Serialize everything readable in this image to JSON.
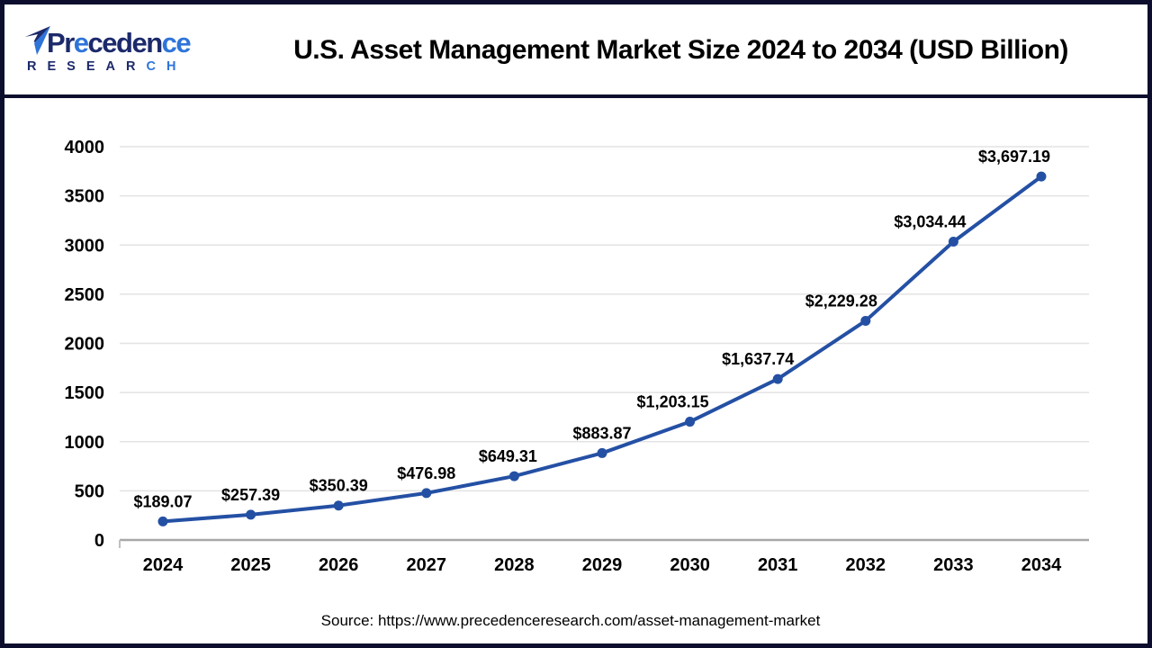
{
  "header": {
    "logo": {
      "brand": "Precedence",
      "sub": "RESEARCH"
    },
    "title": "U.S. Asset Management Market Size 2024 to 2034 (USD Billion)"
  },
  "chart_data": {
    "type": "line",
    "title": "U.S. Asset Management Market Size 2024 to 2034 (USD Billion)",
    "x": [
      2024,
      2025,
      2026,
      2027,
      2028,
      2029,
      2030,
      2031,
      2032,
      2033,
      2034
    ],
    "values": [
      189.07,
      257.39,
      350.39,
      476.98,
      649.31,
      883.87,
      1203.15,
      1637.74,
      2229.28,
      3034.44,
      3697.19
    ],
    "point_labels": [
      "$189.07",
      "$257.39",
      "$350.39",
      "$476.98",
      "$649.31",
      "$883.87",
      "$1,203.15",
      "$1,637.74",
      "$2,229.28",
      "$3,034.44",
      "$3,697.19"
    ],
    "unit": "USD Billion",
    "xlabel": "",
    "ylabel": "",
    "ylim": [
      0,
      4000
    ],
    "yticks": [
      0,
      500,
      1000,
      1500,
      2000,
      2500,
      3000,
      3500,
      4000
    ],
    "grid": true,
    "legend": "none"
  },
  "footer": {
    "source": "Source: https://www.precedenceresearch.com/asset-management-market"
  },
  "colors": {
    "line": "#2450a4",
    "grid": "#e3e3e3",
    "axis": "#a8a8a8",
    "tick": "#c0c0c0",
    "text": "#000000",
    "frame": "#0d0e2e",
    "logo_navy": "#1c2a6b",
    "logo_blue": "#2e74d9"
  }
}
